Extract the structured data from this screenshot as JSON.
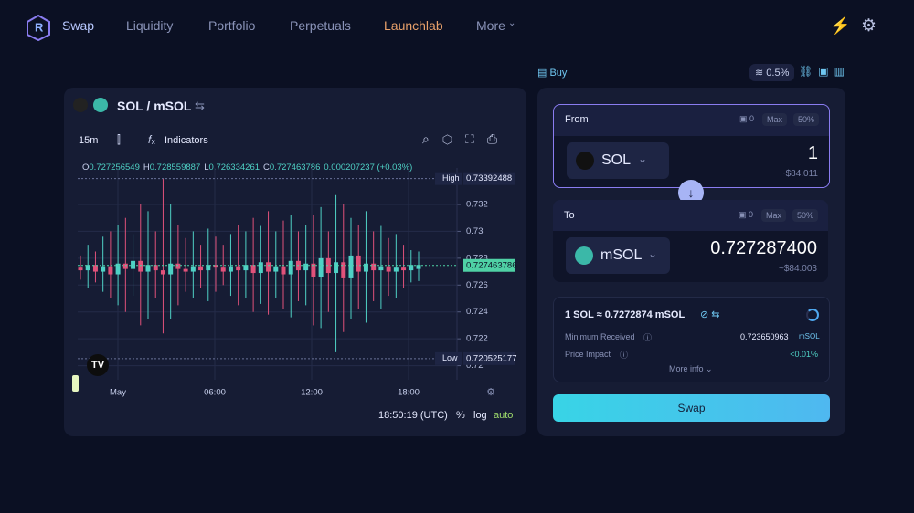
{
  "nav": {
    "items": [
      "Swap",
      "Liquidity",
      "Portfolio",
      "Perpetuals",
      "Launchlab",
      "More"
    ]
  },
  "chart": {
    "pair": "SOL / mSOL",
    "interval": "15m",
    "indicators": "Indicators",
    "ohlc": [
      {
        "label": "O",
        "value": "0.727256549"
      },
      {
        "label": "H",
        "value": "0.728559887"
      },
      {
        "label": "L",
        "value": "0.726334261"
      },
      {
        "label": "C",
        "value": "0.727463786"
      }
    ],
    "change": "0.000207237 (+0.03%)",
    "ylim": [
      0.7197,
      0.73431
    ],
    "yticks": [
      0.732,
      0.73,
      0.728,
      0.726,
      0.724,
      0.722,
      0.72
    ],
    "high": {
      "label": "High",
      "value": 0.73392488
    },
    "low": {
      "label": "Low",
      "value": 0.720525177
    },
    "last": 0.727463786,
    "xticks": [
      "May",
      "06:00",
      "12:00",
      "18:00"
    ],
    "candles": [
      [
        0.7273,
        0.7282,
        0.7264,
        0.7271
      ],
      [
        0.7271,
        0.729,
        0.7258,
        0.7275
      ],
      [
        0.7275,
        0.7285,
        0.7262,
        0.727
      ],
      [
        0.727,
        0.7296,
        0.7255,
        0.7274
      ],
      [
        0.7274,
        0.73,
        0.725,
        0.7268
      ],
      [
        0.7268,
        0.7305,
        0.7245,
        0.7276
      ],
      [
        0.7276,
        0.731,
        0.724,
        0.7272
      ],
      [
        0.7272,
        0.7298,
        0.7252,
        0.7278
      ],
      [
        0.7278,
        0.732,
        0.723,
        0.727
      ],
      [
        0.727,
        0.7315,
        0.7235,
        0.7275
      ],
      [
        0.7275,
        0.73,
        0.725,
        0.7271
      ],
      [
        0.7271,
        0.7339,
        0.7224,
        0.7268
      ],
      [
        0.7268,
        0.732,
        0.7235,
        0.7276
      ],
      [
        0.7276,
        0.7305,
        0.7245,
        0.7272
      ],
      [
        0.7272,
        0.7295,
        0.7255,
        0.727
      ],
      [
        0.727,
        0.73,
        0.725,
        0.7274
      ],
      [
        0.7274,
        0.729,
        0.7258,
        0.7271
      ],
      [
        0.7271,
        0.7302,
        0.7248,
        0.7275
      ],
      [
        0.7275,
        0.7296,
        0.7255,
        0.7273
      ],
      [
        0.7273,
        0.729,
        0.726,
        0.727
      ],
      [
        0.727,
        0.7298,
        0.7252,
        0.7274
      ],
      [
        0.7274,
        0.7305,
        0.7245,
        0.7271
      ],
      [
        0.7271,
        0.73,
        0.725,
        0.7275
      ],
      [
        0.7275,
        0.731,
        0.724,
        0.7269
      ],
      [
        0.7269,
        0.7304,
        0.7246,
        0.7277
      ],
      [
        0.7277,
        0.7315,
        0.7238,
        0.727
      ],
      [
        0.727,
        0.73,
        0.725,
        0.7274
      ],
      [
        0.7274,
        0.7308,
        0.7242,
        0.7268
      ],
      [
        0.7268,
        0.7312,
        0.7236,
        0.7278
      ],
      [
        0.7278,
        0.73,
        0.7248,
        0.7271
      ],
      [
        0.7271,
        0.7305,
        0.7245,
        0.7276
      ],
      [
        0.7276,
        0.7312,
        0.723,
        0.7266
      ],
      [
        0.7266,
        0.7318,
        0.7228,
        0.728
      ],
      [
        0.728,
        0.73,
        0.724,
        0.7269
      ],
      [
        0.7269,
        0.7327,
        0.721,
        0.7277
      ],
      [
        0.7277,
        0.732,
        0.7225,
        0.7265
      ],
      [
        0.7265,
        0.731,
        0.7235,
        0.7282
      ],
      [
        0.7282,
        0.7305,
        0.7242,
        0.727
      ],
      [
        0.727,
        0.7315,
        0.7232,
        0.7276
      ],
      [
        0.7276,
        0.73,
        0.7248,
        0.7271
      ],
      [
        0.7271,
        0.7304,
        0.7242,
        0.7274
      ],
      [
        0.7274,
        0.7295,
        0.7252,
        0.727
      ],
      [
        0.727,
        0.7298,
        0.725,
        0.7273
      ],
      [
        0.7273,
        0.729,
        0.7258,
        0.7271
      ],
      [
        0.7271,
        0.7286,
        0.7262,
        0.7275
      ],
      [
        0.7272,
        0.7285,
        0.7263,
        0.7275
      ]
    ],
    "up_color": "#4fd1c5",
    "down_color": "#e0527a",
    "time": "18:50:19 (UTC)",
    "percent": "%",
    "log": "log",
    "auto": "auto"
  },
  "swap": {
    "buy": "Buy",
    "slippage": "0.5%",
    "from": {
      "label": "From",
      "balance": "0",
      "max": "Max",
      "half": "50%",
      "token": "SOL",
      "amount": "1",
      "usd": "~$84.011"
    },
    "to": {
      "label": "To",
      "balance": "0",
      "max": "Max",
      "half": "50%",
      "token": "mSOL",
      "amount": "0.727287400",
      "usd": "~$84.003"
    },
    "rate": "1 SOL ≈ 0.7272874 mSOL",
    "min_received": {
      "label": "Minimum Received",
      "value": "0.723650963",
      "unit": "mSOL"
    },
    "price_impact": {
      "label": "Price Impact",
      "value": "<0.01%"
    },
    "more_info": "More info",
    "button": "Swap"
  }
}
